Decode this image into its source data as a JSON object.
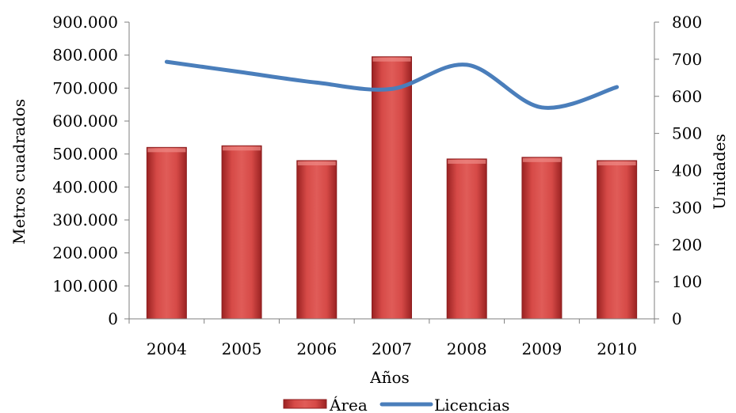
{
  "chart_data": {
    "type": "bar",
    "categories": [
      "2004",
      "2005",
      "2006",
      "2007",
      "2008",
      "2009",
      "2010"
    ],
    "series": [
      {
        "name": "Área",
        "type": "bar",
        "axis": "left",
        "values": [
          520000,
          525000,
          480000,
          795000,
          485000,
          490000,
          480000
        ]
      },
      {
        "name": "Licencias",
        "type": "line",
        "axis": "right",
        "values": [
          693,
          665,
          637,
          620,
          685,
          570,
          625
        ]
      }
    ],
    "xlabel": "Años",
    "ylabel": "Metros cuadrados",
    "y2label": "Unidades",
    "ylim": [
      0,
      900000
    ],
    "y2lim": [
      0,
      800
    ],
    "yticks": [
      "0",
      "100.000",
      "200.000",
      "300.000",
      "400.000",
      "500.000",
      "600.000",
      "700.000",
      "800.000",
      "900.000"
    ],
    "y2ticks": [
      "0",
      "100",
      "200",
      "300",
      "400",
      "500",
      "600",
      "700",
      "800"
    ],
    "grid": false,
    "legend_position": "bottom",
    "colors": {
      "bar": "#d6403f",
      "bar_dark": "#8e1e1f",
      "line": "#4a7ebb",
      "axis": "#7f7f7f"
    }
  }
}
